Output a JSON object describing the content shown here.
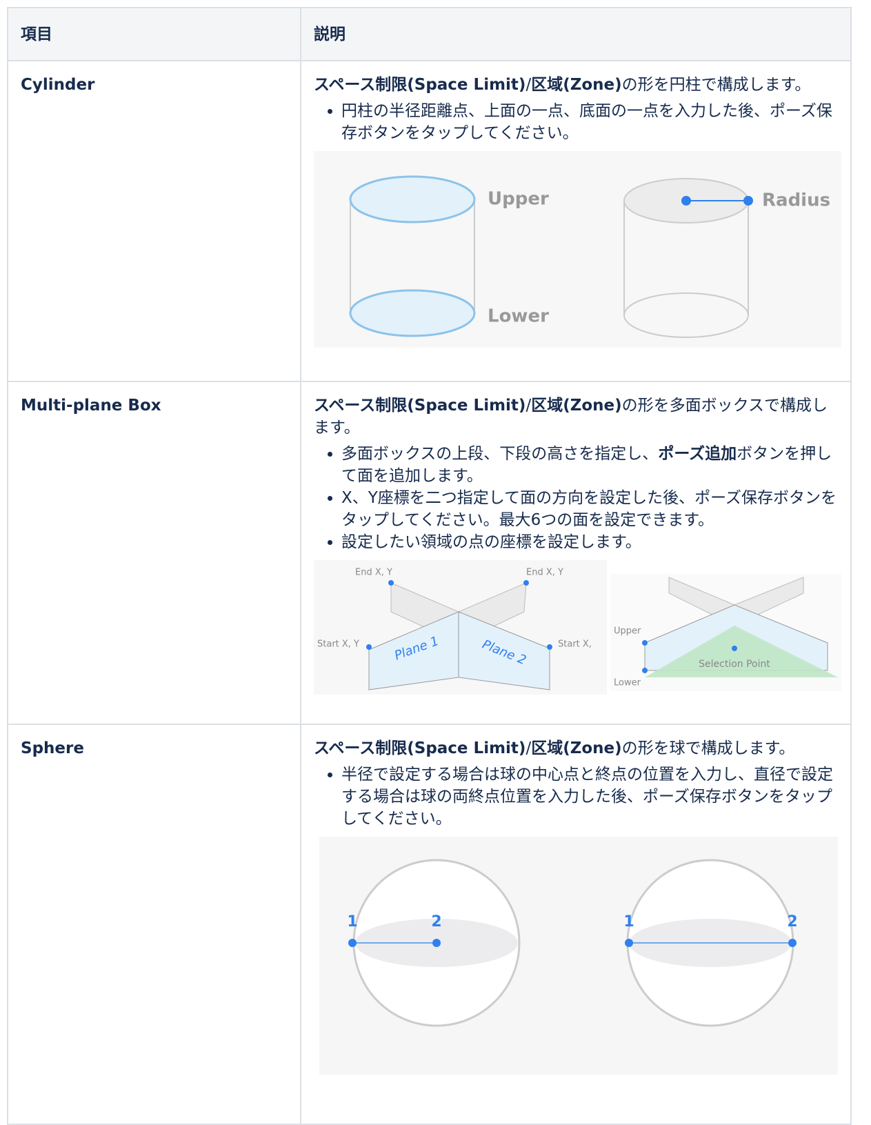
{
  "table": {
    "headers": [
      "項目",
      "説明"
    ],
    "rows": [
      {
        "item": "Cylinder",
        "lead": [
          {
            "bold": "スペース制限(Space Limit)"
          },
          "/",
          {
            "bold": "区域(Zone)"
          },
          "の形を円柱で構成します。"
        ],
        "bullets": [
          [
            "円柱の半径距離点、上面の一点、底面の一点を入力した後、ポーズ保存ボタンをタップしてください。"
          ]
        ],
        "figure": {
          "labels": [
            "Upper",
            "Lower",
            "Radius"
          ]
        }
      },
      {
        "item": "Multi-plane Box",
        "lead": [
          {
            "bold": "スペース制限(Space Limit)"
          },
          "/",
          {
            "bold": "区域(Zone)"
          },
          "の形を多面ボックスで構成します。"
        ],
        "bullets": [
          [
            "多面ボックスの上段、下段の高さを指定し、",
            {
              "bold": "ポーズ追加"
            },
            "ボタンを押して面を追加します。"
          ],
          [
            "X、Y座標を二つ指定して面の方向を設定した後、ポーズ保存ボタンをタップしてください。最大6つの面を設定できます。"
          ],
          [
            "設定したい領域の点の座標を設定します。"
          ]
        ],
        "figure": {
          "labels": [
            "End X, Y",
            "End X, Y",
            "Start X, Y",
            "Start X,",
            "Plane 1",
            "Plane 2",
            "Upper",
            "Lower",
            "Selection Point"
          ]
        }
      },
      {
        "item": "Sphere",
        "lead": [
          {
            "bold": "スペース制限(Space Limit)"
          },
          "/",
          {
            "bold": "区域(Zone)"
          },
          "の形を球で構成します。"
        ],
        "bullets": [
          [
            "半径で設定する場合は球の中心点と終点の位置を入力し、直径で設定する場合は球の両終点位置を入力した後、ポーズ保存ボタンをタップしてください。"
          ]
        ],
        "figure": {
          "labels": [
            "1",
            "2",
            "1",
            "2"
          ]
        }
      }
    ]
  }
}
